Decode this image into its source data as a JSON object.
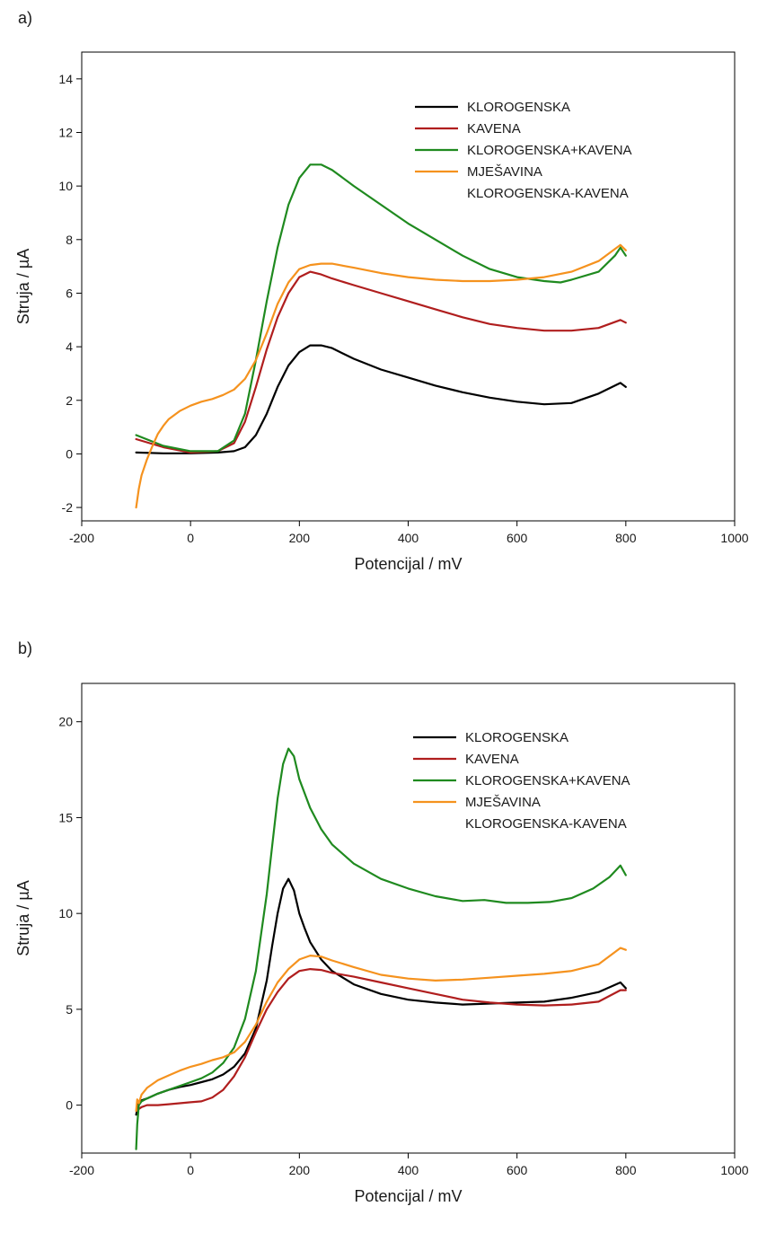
{
  "chart_data": [
    {
      "type": "line",
      "panel_label": "a)",
      "xlabel": "Potencijal / mV",
      "ylabel": "Struja / µA",
      "xlim": [
        -200,
        1000
      ],
      "ylim": [
        -2.5,
        15
      ],
      "xticks": [
        -200,
        0,
        200,
        400,
        600,
        800,
        1000
      ],
      "yticks": [
        -2,
        0,
        2,
        4,
        6,
        8,
        10,
        12,
        14
      ],
      "grid": false,
      "legend": "top-right",
      "series": [
        {
          "name": "KLOROGENSKA",
          "color": "#000000",
          "x": [
            -100,
            -50,
            0,
            50,
            80,
            100,
            120,
            140,
            160,
            180,
            200,
            220,
            240,
            260,
            280,
            300,
            350,
            400,
            450,
            500,
            550,
            600,
            650,
            700,
            750,
            790,
            800
          ],
          "y": [
            0.05,
            0.02,
            0.02,
            0.05,
            0.1,
            0.25,
            0.7,
            1.5,
            2.5,
            3.3,
            3.8,
            4.05,
            4.05,
            3.95,
            3.75,
            3.55,
            3.15,
            2.85,
            2.55,
            2.3,
            2.1,
            1.95,
            1.85,
            1.9,
            2.25,
            2.65,
            2.5
          ]
        },
        {
          "name": "KAVENA",
          "color": "#b01e1e",
          "x": [
            -100,
            -50,
            0,
            50,
            80,
            100,
            120,
            140,
            160,
            180,
            200,
            220,
            240,
            260,
            300,
            350,
            400,
            450,
            500,
            550,
            600,
            650,
            700,
            750,
            790,
            800
          ],
          "y": [
            0.55,
            0.25,
            0.05,
            0.1,
            0.4,
            1.2,
            2.5,
            3.9,
            5.1,
            6.0,
            6.6,
            6.8,
            6.7,
            6.55,
            6.3,
            6.0,
            5.7,
            5.4,
            5.1,
            4.85,
            4.7,
            4.6,
            4.6,
            4.7,
            5.0,
            4.9
          ]
        },
        {
          "name": "KLOROGENSKA+KAVENA",
          "color": "#1f8a1f",
          "x": [
            -100,
            -50,
            0,
            50,
            80,
            100,
            120,
            140,
            160,
            180,
            200,
            220,
            240,
            260,
            300,
            350,
            400,
            450,
            500,
            550,
            600,
            650,
            680,
            700,
            750,
            780,
            790,
            800
          ],
          "y": [
            0.7,
            0.3,
            0.1,
            0.1,
            0.5,
            1.5,
            3.5,
            5.7,
            7.7,
            9.3,
            10.3,
            10.8,
            10.8,
            10.6,
            10.0,
            9.3,
            8.6,
            8.0,
            7.4,
            6.9,
            6.6,
            6.45,
            6.4,
            6.5,
            6.8,
            7.4,
            7.7,
            7.4
          ]
        },
        {
          "name": "MJEŠAVINA KLOROGENSKA-KAVENA",
          "color": "#f5921e",
          "x": [
            -100,
            -95,
            -90,
            -80,
            -70,
            -60,
            -50,
            -40,
            -20,
            0,
            20,
            40,
            60,
            80,
            100,
            120,
            140,
            160,
            180,
            200,
            220,
            240,
            260,
            300,
            350,
            400,
            450,
            500,
            550,
            600,
            650,
            700,
            750,
            790,
            800
          ],
          "y": [
            -2.0,
            -1.3,
            -0.8,
            -0.2,
            0.3,
            0.75,
            1.05,
            1.3,
            1.6,
            1.8,
            1.95,
            2.05,
            2.2,
            2.4,
            2.8,
            3.5,
            4.5,
            5.6,
            6.4,
            6.9,
            7.05,
            7.1,
            7.1,
            6.95,
            6.75,
            6.6,
            6.5,
            6.45,
            6.45,
            6.5,
            6.6,
            6.8,
            7.2,
            7.8,
            7.6
          ]
        }
      ]
    },
    {
      "type": "line",
      "panel_label": "b)",
      "xlabel": "Potencijal / mV",
      "ylabel": "Struja / µA",
      "xlim": [
        -200,
        1000
      ],
      "ylim": [
        -2.5,
        22
      ],
      "xticks": [
        -200,
        0,
        200,
        400,
        600,
        800,
        1000
      ],
      "yticks": [
        0,
        5,
        10,
        15,
        20
      ],
      "grid": false,
      "legend": "top-right",
      "series": [
        {
          "name": "KLOROGENSKA",
          "color": "#000000",
          "x": [
            -100,
            -95,
            -80,
            -60,
            -40,
            -20,
            0,
            20,
            40,
            60,
            80,
            100,
            120,
            140,
            150,
            160,
            170,
            180,
            190,
            200,
            210,
            220,
            240,
            260,
            300,
            350,
            400,
            450,
            500,
            550,
            600,
            650,
            700,
            750,
            790,
            800
          ],
          "y": [
            -0.5,
            0.2,
            0.35,
            0.6,
            0.8,
            0.95,
            1.05,
            1.2,
            1.35,
            1.6,
            2.0,
            2.7,
            4.0,
            6.5,
            8.3,
            10.0,
            11.3,
            11.8,
            11.2,
            10.0,
            9.2,
            8.5,
            7.6,
            7.0,
            6.3,
            5.8,
            5.5,
            5.35,
            5.25,
            5.3,
            5.35,
            5.4,
            5.6,
            5.9,
            6.4,
            6.1
          ]
        },
        {
          "name": "KAVENA",
          "color": "#b01e1e",
          "x": [
            -100,
            -90,
            -80,
            -60,
            -40,
            -20,
            0,
            20,
            40,
            60,
            80,
            100,
            120,
            140,
            160,
            180,
            200,
            220,
            240,
            260,
            300,
            350,
            400,
            450,
            500,
            550,
            600,
            650,
            700,
            750,
            790,
            800
          ],
          "y": [
            -0.3,
            -0.1,
            0.0,
            0.0,
            0.05,
            0.1,
            0.15,
            0.2,
            0.4,
            0.8,
            1.5,
            2.5,
            3.8,
            5.0,
            5.9,
            6.6,
            7.0,
            7.1,
            7.05,
            6.9,
            6.7,
            6.4,
            6.1,
            5.8,
            5.5,
            5.35,
            5.25,
            5.2,
            5.25,
            5.4,
            6.0,
            6.0
          ]
        },
        {
          "name": "KLOROGENSKA+KAVENA",
          "color": "#1f8a1f",
          "x": [
            -100,
            -98,
            -95,
            -90,
            -80,
            -60,
            -40,
            -20,
            0,
            20,
            40,
            60,
            80,
            100,
            120,
            140,
            150,
            160,
            170,
            180,
            190,
            200,
            220,
            240,
            260,
            300,
            350,
            400,
            450,
            500,
            540,
            580,
            620,
            660,
            700,
            740,
            770,
            790,
            800
          ],
          "y": [
            -2.3,
            -1.0,
            0.0,
            0.2,
            0.35,
            0.6,
            0.8,
            1.0,
            1.2,
            1.4,
            1.7,
            2.2,
            3.0,
            4.5,
            7.0,
            11.0,
            13.5,
            16.0,
            17.8,
            18.6,
            18.2,
            17.0,
            15.5,
            14.4,
            13.6,
            12.6,
            11.8,
            11.3,
            10.9,
            10.65,
            10.7,
            10.55,
            10.55,
            10.6,
            10.8,
            11.3,
            11.9,
            12.5,
            12.0
          ]
        },
        {
          "name": "MJEŠAVINA KLOROGENSKA-KAVENA",
          "color": "#f5921e",
          "x": [
            -100,
            -98,
            -95,
            -90,
            -80,
            -60,
            -40,
            -20,
            0,
            20,
            40,
            60,
            80,
            100,
            120,
            140,
            160,
            180,
            200,
            220,
            240,
            260,
            300,
            350,
            400,
            450,
            500,
            550,
            600,
            650,
            700,
            750,
            790,
            800
          ],
          "y": [
            -0.3,
            0.3,
            0.1,
            0.55,
            0.9,
            1.3,
            1.55,
            1.8,
            2.0,
            2.15,
            2.35,
            2.5,
            2.75,
            3.3,
            4.2,
            5.4,
            6.4,
            7.1,
            7.6,
            7.8,
            7.75,
            7.55,
            7.2,
            6.8,
            6.6,
            6.5,
            6.55,
            6.65,
            6.75,
            6.85,
            7.0,
            7.35,
            8.2,
            8.1
          ]
        }
      ]
    }
  ]
}
